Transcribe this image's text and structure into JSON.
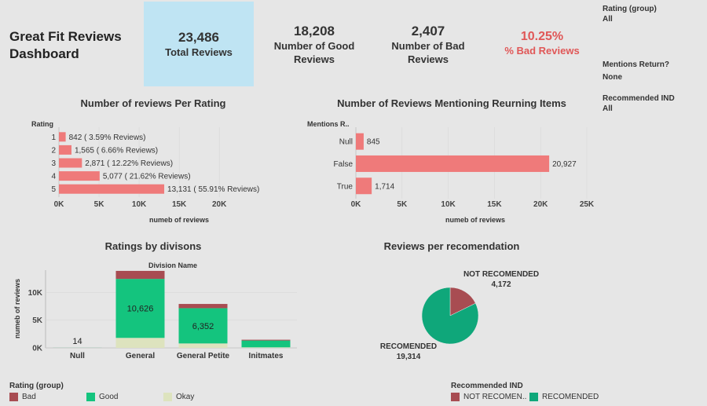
{
  "dashboard": {
    "title": "Great Fit Reviews Dashboard"
  },
  "kpis": {
    "total": {
      "value": "23,486",
      "label": "Total Reviews"
    },
    "good": {
      "value": "18,208",
      "label": "Number of Good Reviews"
    },
    "bad": {
      "value": "2,407",
      "label": "Number of Bad Reviews"
    },
    "pct_bad": {
      "value": "10.25%",
      "label": "% Bad Reviews"
    }
  },
  "filters": [
    {
      "label": "Rating (group)",
      "value": "All"
    },
    {
      "label": "Mentions Return?",
      "value": "None"
    },
    {
      "label": "Recommended IND",
      "value": "All"
    }
  ],
  "colors": {
    "salmon": "#ef7a7a",
    "bad": "#a84c52",
    "good": "#14c47e",
    "okay": "#dde3be",
    "pie_recommended": "#0fa77a",
    "pie_not": "#a84c52",
    "axis": "#bbbbbb",
    "grid": "#d4d4d4"
  },
  "chart_data": [
    {
      "type": "bar",
      "orientation": "horizontal",
      "title": "Number of reviews Per Rating",
      "ylabel": "Rating",
      "xlabel": "numeb of reviews",
      "categories": [
        "1",
        "2",
        "3",
        "4",
        "5"
      ],
      "values": [
        842,
        1565,
        2871,
        5077,
        13131
      ],
      "data_labels": [
        "842 ( 3.59% Reviews)",
        "1,565 ( 6.66% Reviews)",
        "2,871 ( 12.22% Reviews)",
        "5,077 ( 21.62% Reviews)",
        "13,131 ( 55.91% Reviews)"
      ],
      "xlim": [
        0,
        24000
      ],
      "xticks": [
        0,
        5000,
        10000,
        15000,
        20000
      ],
      "xtick_labels": [
        "0K",
        "5K",
        "10K",
        "15K",
        "20K"
      ]
    },
    {
      "type": "bar",
      "orientation": "horizontal",
      "title": "Number of Reviews Mentioning Reurning Items",
      "ylabel": "Mentions R..",
      "xlabel": "numeb of reviews",
      "categories": [
        "Null",
        "False",
        "True"
      ],
      "values": [
        845,
        20927,
        1714
      ],
      "data_labels": [
        "845",
        "20,927",
        "1,714"
      ],
      "xlim": [
        0,
        25000
      ],
      "xticks": [
        0,
        5000,
        10000,
        15000,
        20000,
        25000
      ],
      "xtick_labels": [
        "0K",
        "5K",
        "10K",
        "15K",
        "20K",
        "25K"
      ]
    },
    {
      "type": "bar",
      "stacked": true,
      "title": "Ratings by divisons",
      "xlabel": "Division Name",
      "ylabel": "numeb of reviews",
      "categories": [
        "Null",
        "General",
        "General Petite",
        "Initmates"
      ],
      "series": [
        {
          "name": "Okay",
          "values": [
            2,
            1800,
            800,
            100
          ]
        },
        {
          "name": "Good",
          "values": [
            11,
            10626,
            6352,
            1230
          ]
        },
        {
          "name": "Bad",
          "values": [
            1,
            1440,
            760,
            140
          ]
        }
      ],
      "data_labels": [
        {
          "index": 0,
          "text": "14"
        },
        {
          "index": 1,
          "text": "10,626"
        },
        {
          "index": 2,
          "text": "6,352"
        }
      ],
      "ylim": [
        0,
        14000
      ],
      "yticks": [
        0,
        5000,
        10000
      ],
      "ytick_labels": [
        "0K",
        "5K",
        "10K"
      ],
      "legend": {
        "title": "Rating (group)",
        "entries": [
          "Bad",
          "Good",
          "Okay"
        ],
        "placement": "bottom-left"
      }
    },
    {
      "type": "pie",
      "title": "Reviews per recomendation",
      "categories": [
        "NOT RECOMENDED",
        "RECOMENDED"
      ],
      "values": [
        4172,
        19314
      ],
      "value_labels": [
        "4,172",
        "19,314"
      ],
      "legend": {
        "title": "Recommended IND",
        "entries": [
          "NOT RECOMEN..",
          "RECOMENDED"
        ],
        "placement": "bottom-right"
      }
    }
  ]
}
